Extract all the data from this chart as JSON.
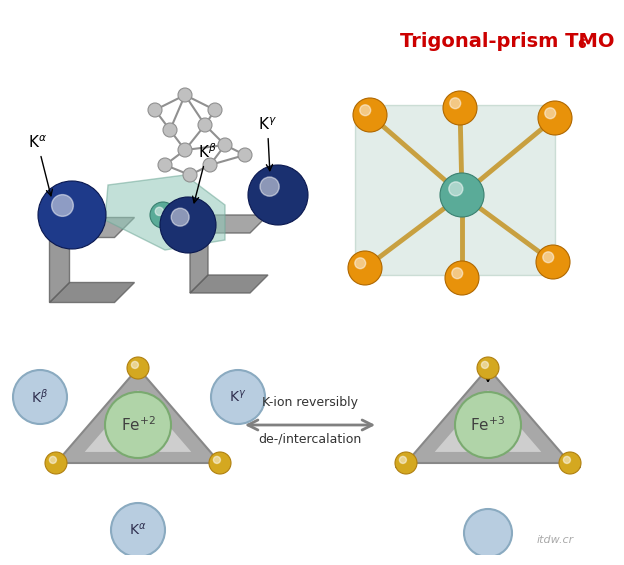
{
  "bg_color": "#ffffff",
  "title_text": "Trigonal-prism TMO",
  "title_sub": "6",
  "title_color": "#cc0000",
  "title_fontsize": 14,
  "title_sub_fontsize": 9,
  "k_blue_color": "#1e3a8a",
  "k_ball_color": "#b8cde0",
  "k_ball_edge": "#8aaac0",
  "yellow_color": "#d4a820",
  "yellow_edge": "#b08010",
  "teal_color": "#5aab98",
  "teal_edge": "#3a8070",
  "orange_color": "#e8920a",
  "orange_edge": "#b06800",
  "gray_ball": "#c0c0c0",
  "gray_edge": "#909090",
  "bond_color_orange": "#c8a040",
  "bond_color_teal": "#6aaa90",
  "fe_fill": "#b0d4a8",
  "fe_edge": "#7aaa70",
  "arrow_color": "#808080",
  "text_color": "#333333",
  "watermark_color": "#aaaaaa"
}
